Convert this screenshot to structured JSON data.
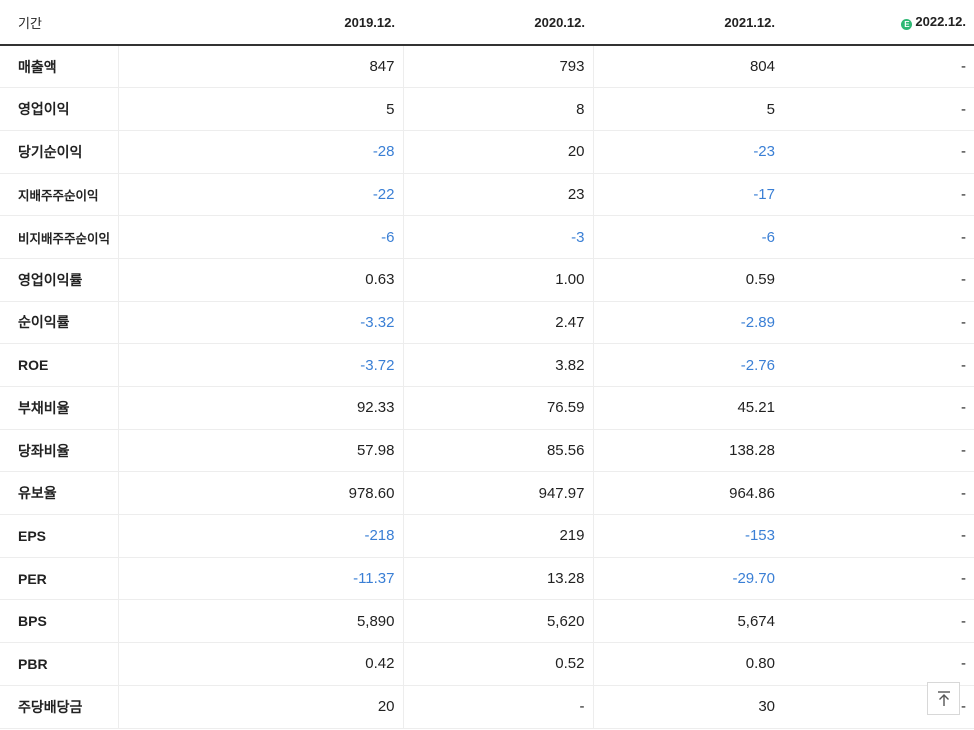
{
  "header": {
    "period_label": "기간",
    "years": [
      "2019.12.",
      "2020.12.",
      "2021.12.",
      "2022.12."
    ],
    "estimate_icon": "E"
  },
  "rows": [
    {
      "label": "매출액",
      "values": [
        "847",
        "793",
        "804",
        "-"
      ]
    },
    {
      "label": "영업이익",
      "values": [
        "5",
        "8",
        "5",
        "-"
      ]
    },
    {
      "label": "당기순이익",
      "values": [
        "-28",
        "20",
        "-23",
        "-"
      ]
    },
    {
      "label": "지배주주순이익",
      "values": [
        "-22",
        "23",
        "-17",
        "-"
      ]
    },
    {
      "label": "비지배주주순이익",
      "values": [
        "-6",
        "-3",
        "-6",
        "-"
      ]
    },
    {
      "label": "영업이익률",
      "values": [
        "0.63",
        "1.00",
        "0.59",
        "-"
      ]
    },
    {
      "label": "순이익률",
      "values": [
        "-3.32",
        "2.47",
        "-2.89",
        "-"
      ]
    },
    {
      "label": "ROE",
      "values": [
        "-3.72",
        "3.82",
        "-2.76",
        "-"
      ]
    },
    {
      "label": "부채비율",
      "values": [
        "92.33",
        "76.59",
        "45.21",
        "-"
      ]
    },
    {
      "label": "당좌비율",
      "values": [
        "57.98",
        "85.56",
        "138.28",
        "-"
      ]
    },
    {
      "label": "유보율",
      "values": [
        "978.60",
        "947.97",
        "964.86",
        "-"
      ]
    },
    {
      "label": "EPS",
      "values": [
        "-218",
        "219",
        "-153",
        "-"
      ]
    },
    {
      "label": "PER",
      "values": [
        "-11.37",
        "13.28",
        "-29.70",
        "-"
      ]
    },
    {
      "label": "BPS",
      "values": [
        "5,890",
        "5,620",
        "5,674",
        "-"
      ]
    },
    {
      "label": "PBR",
      "values": [
        "0.42",
        "0.52",
        "0.80",
        "-"
      ]
    },
    {
      "label": "주당배당금",
      "values": [
        "20",
        "-",
        "30",
        "-"
      ]
    }
  ],
  "colors": {
    "negative": "#3a7fd5",
    "estimate_badge": "#2eb874"
  },
  "icons": {
    "scroll_top": "arrow-up-to-top-icon"
  }
}
